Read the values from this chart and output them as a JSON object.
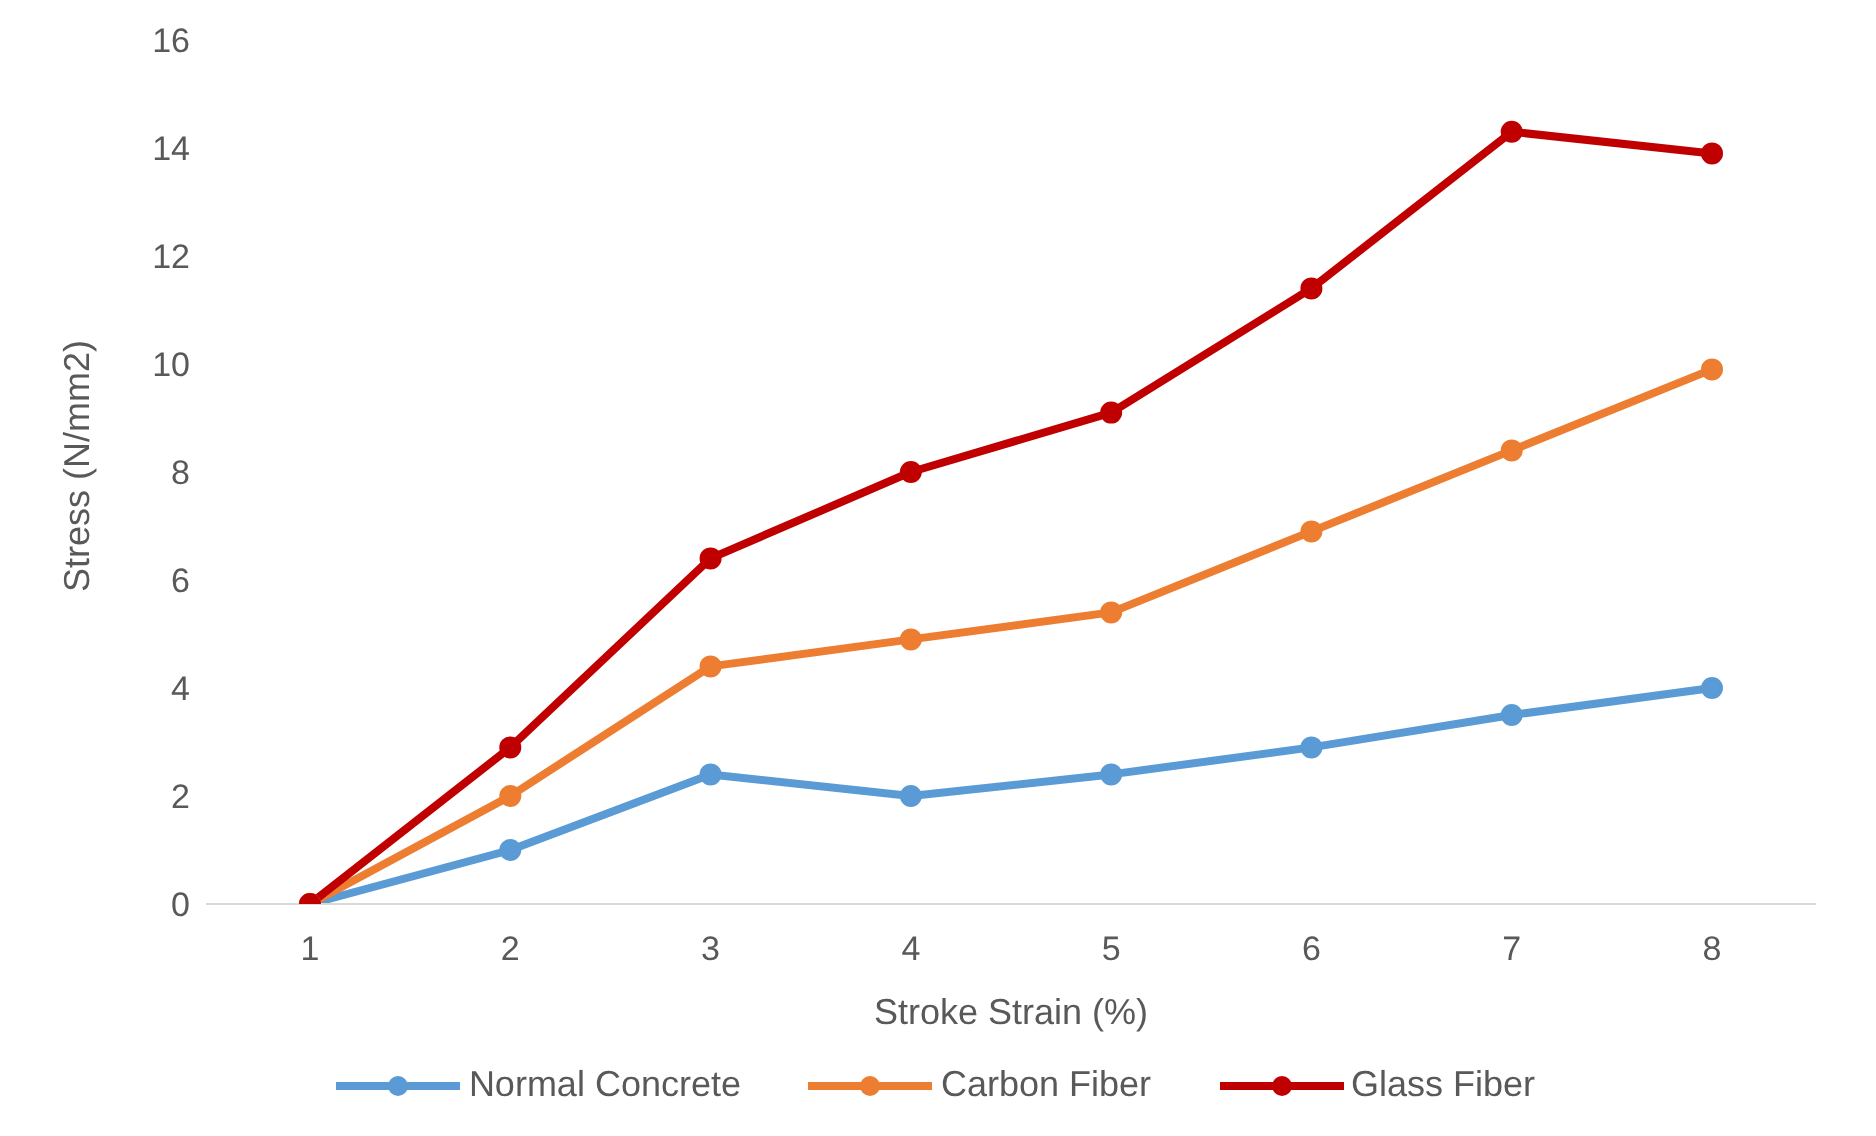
{
  "chart_data": {
    "type": "line",
    "xlabel": "Stroke Strain (%)",
    "ylabel": "Stress (N/mm2)",
    "categories": [
      "1",
      "2",
      "3",
      "4",
      "5",
      "6",
      "7",
      "8"
    ],
    "series": [
      {
        "name": "Normal Concrete",
        "color": "#5b9bd5",
        "values": [
          0,
          1,
          2.4,
          2,
          2.4,
          2.9,
          3.5,
          4
        ]
      },
      {
        "name": "Carbon Fiber",
        "color": "#ed7d31",
        "values": [
          0,
          2,
          4.4,
          4.9,
          5.4,
          6.9,
          8.4,
          9.9
        ]
      },
      {
        "name": "Glass Fiber",
        "color": "#c00000",
        "values": [
          0,
          2.9,
          6.4,
          8,
          9.1,
          11.4,
          14.3,
          13.9
        ]
      }
    ],
    "ylim": [
      0,
      16
    ],
    "yticks": [
      0,
      2,
      4,
      6,
      8,
      10,
      12,
      14,
      16
    ],
    "legend": "bottom",
    "marker": "circle",
    "line_style": "solid"
  }
}
